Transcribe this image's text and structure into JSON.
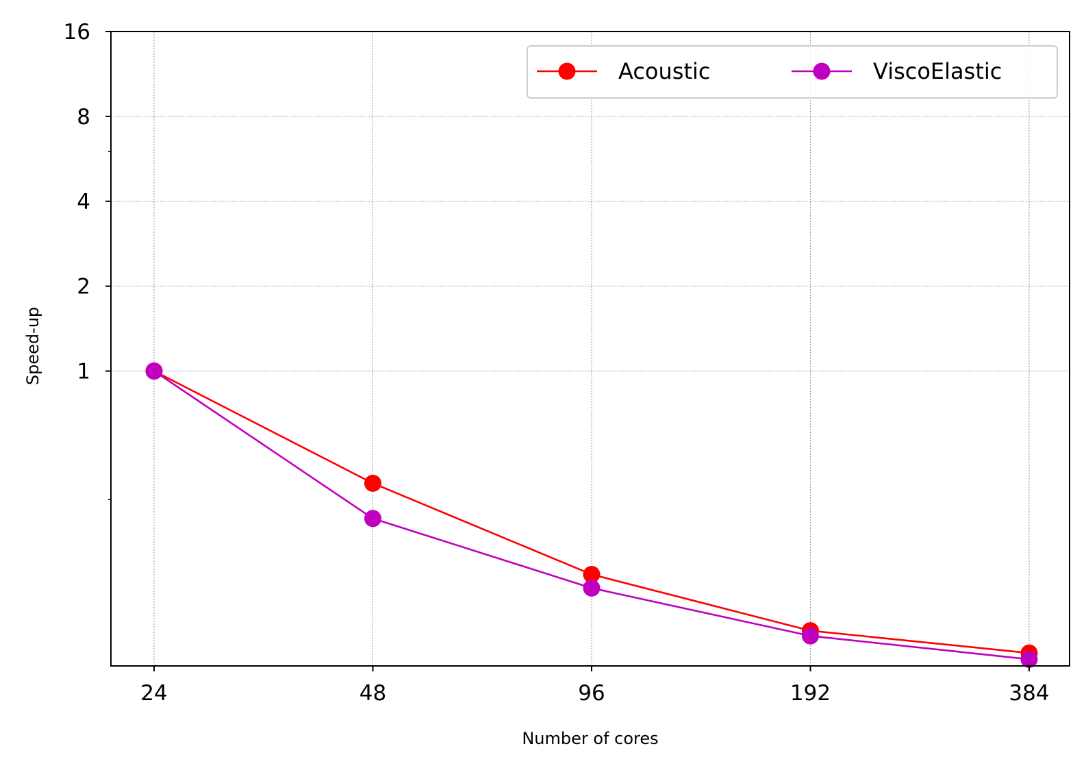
{
  "chart_data": {
    "type": "line",
    "xlabel": "Number of cores",
    "ylabel": "Speed-up",
    "x_scale": "log2",
    "y_scale": "log2",
    "x": [
      24,
      48,
      96,
      192,
      384
    ],
    "x_ticks": [
      "24",
      "48",
      "96",
      "192",
      "384"
    ],
    "y_ticks": [
      {
        "value": 1,
        "label": "1"
      },
      {
        "value": 2,
        "label": "2"
      },
      {
        "value": 4,
        "label": "4"
      },
      {
        "value": 8,
        "label": "8"
      },
      {
        "value": 16,
        "label": "16"
      }
    ],
    "ylim": [
      0.09,
      16
    ],
    "grid": true,
    "legend_position": "top-right",
    "series": [
      {
        "name": "Acoustic",
        "color": "#ff0000",
        "values": [
          1.0,
          0.4,
          0.19,
          0.12,
          0.1
        ]
      },
      {
        "name": "ViscoElastic",
        "color": "#bf00bf",
        "values": [
          1.0,
          0.3,
          0.17,
          0.115,
          0.095
        ]
      }
    ]
  }
}
